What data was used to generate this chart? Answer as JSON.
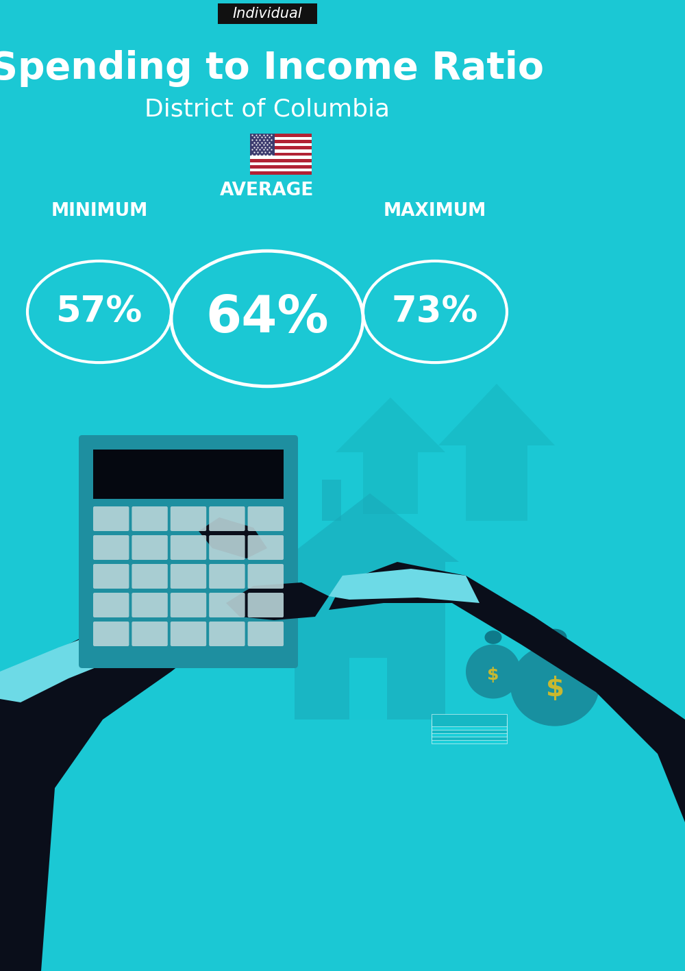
{
  "bg_color": "#1BC8D4",
  "title_tag": "Individual",
  "title_tag_bg": "#111111",
  "title_tag_color": "#ffffff",
  "main_title": "Spending to Income Ratio",
  "subtitle": "District of Columbia",
  "label_avg": "AVERAGE",
  "label_min": "MINIMUM",
  "label_max": "MAXIMUM",
  "value_avg": "64%",
  "value_min": "57%",
  "value_max": "73%",
  "circle_color": "#ffffff",
  "text_color": "#ffffff",
  "title_fontsize": 40,
  "subtitle_fontsize": 26,
  "tag_fontsize": 15,
  "label_fontsize": 19,
  "value_small_fontsize": 38,
  "value_large_fontsize": 54,
  "arrow_color": "#17B8C2",
  "dark_color": "#0A0E1A",
  "calc_color": "#1E8FA0",
  "calc_screen_color": "#050810",
  "btn_color": "#B8D4D8",
  "cuff_color": "#6DDAE6",
  "house_color": "#18A8B8",
  "bag_color": "#1890A0",
  "dollar_color": "#C8B830"
}
